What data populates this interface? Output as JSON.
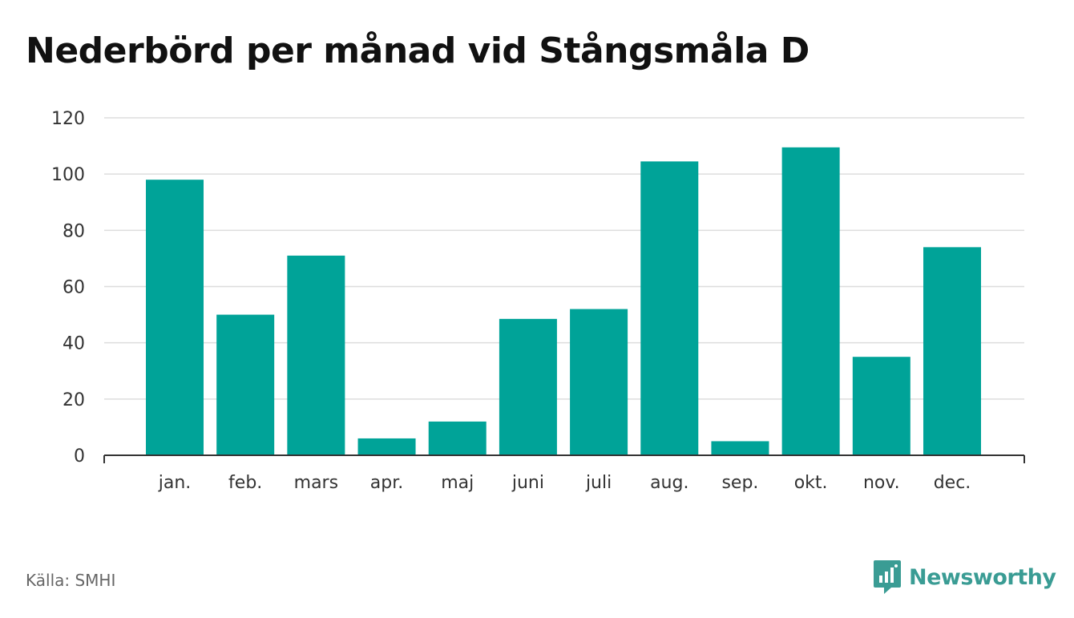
{
  "title": "Nederbörd per månad vid Stångsmåla D",
  "source": "Källa: SMHI",
  "brand": {
    "name": "Newsworthy",
    "color": "#3a9c94"
  },
  "colors": {
    "bar": "#00a398",
    "grid": "#dddddd",
    "axis": "#333333"
  },
  "chart_data": {
    "type": "bar",
    "title": "Nederbörd per månad vid Stångsmåla D",
    "xlabel": "",
    "ylabel": "",
    "categories": [
      "jan.",
      "feb.",
      "mars",
      "apr.",
      "maj",
      "juni",
      "juli",
      "aug.",
      "sep.",
      "okt.",
      "nov.",
      "dec."
    ],
    "values": [
      98,
      50,
      71,
      6,
      12,
      48.5,
      52,
      104.5,
      5,
      109.5,
      35,
      74
    ],
    "ylim": [
      0,
      120
    ],
    "yticks": [
      0,
      20,
      40,
      60,
      80,
      100,
      120
    ],
    "grid": true,
    "legend": "none"
  }
}
